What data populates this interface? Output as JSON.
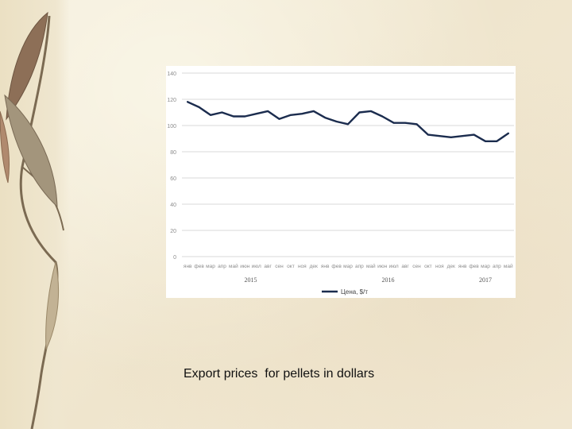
{
  "caption": "Export prices  for pellets in dollars",
  "colors": {
    "line": "#1b2c4e",
    "grid": "#d9d9d9",
    "axis_text": "#8c8c8c",
    "year_text": "#555555"
  },
  "chart_data": {
    "type": "line",
    "title": "",
    "xlabel": "",
    "ylabel": "",
    "ylim": [
      0,
      140
    ],
    "yticks": [
      0,
      20,
      40,
      60,
      80,
      100,
      120,
      140
    ],
    "grid": true,
    "legend": "bottom",
    "categories": [
      "янв",
      "фев",
      "мар",
      "апр",
      "май",
      "июн",
      "июл",
      "авг",
      "сен",
      "окт",
      "ноя",
      "дек",
      "янв",
      "фев",
      "мар",
      "апр",
      "май",
      "июн",
      "июл",
      "авг",
      "сен",
      "окт",
      "ноя",
      "дек",
      "янв",
      "фев",
      "мар",
      "апр",
      "май"
    ],
    "year_labels": [
      {
        "label": "2015",
        "start": 0,
        "end": 11
      },
      {
        "label": "2016",
        "start": 12,
        "end": 23
      },
      {
        "label": "2017",
        "start": 24,
        "end": 28
      }
    ],
    "series": [
      {
        "name": "Цена, $/т",
        "values": [
          118,
          114,
          108,
          110,
          107,
          107,
          109,
          111,
          105,
          108,
          109,
          111,
          106,
          103,
          101,
          110,
          111,
          107,
          102,
          102,
          101,
          93,
          92,
          91,
          92,
          93,
          88,
          88,
          94
        ]
      }
    ]
  }
}
